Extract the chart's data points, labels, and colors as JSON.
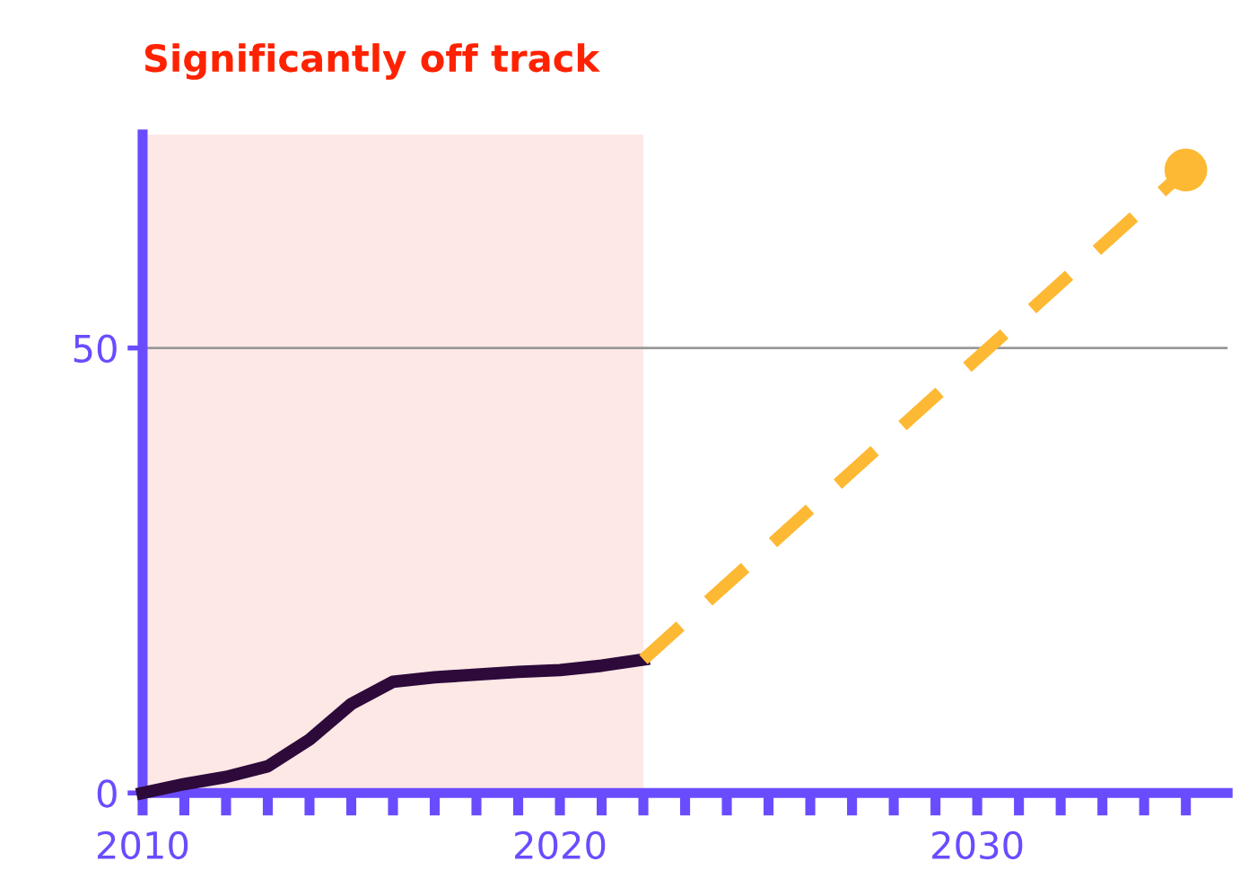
{
  "chart_data": {
    "type": "line",
    "title": "Significantly off track",
    "xlim": [
      2010,
      2036
    ],
    "ylim": [
      0,
      74
    ],
    "xticks": [
      2010,
      {
        "value": 2011,
        "label": null
      },
      {
        "value": 2012,
        "label": null
      },
      {
        "value": 2013,
        "label": null
      },
      {
        "value": 2014,
        "label": null
      },
      {
        "value": 2015,
        "label": null
      },
      {
        "value": 2016,
        "label": null
      },
      {
        "value": 2017,
        "label": null
      },
      {
        "value": 2018,
        "label": null
      },
      {
        "value": 2019,
        "label": null
      },
      2020,
      {
        "value": 2021,
        "label": null
      },
      {
        "value": 2022,
        "label": null
      },
      {
        "value": 2023,
        "label": null
      },
      {
        "value": 2024,
        "label": null
      },
      {
        "value": 2025,
        "label": null
      },
      {
        "value": 2026,
        "label": null
      },
      {
        "value": 2027,
        "label": null
      },
      {
        "value": 2028,
        "label": null
      },
      {
        "value": 2029,
        "label": null
      },
      2030,
      {
        "value": 2031,
        "label": null
      },
      {
        "value": 2032,
        "label": null
      },
      {
        "value": 2033,
        "label": null
      },
      {
        "value": 2034,
        "label": null
      },
      {
        "value": 2035,
        "label": null
      }
    ],
    "yticks": [
      0,
      50
    ],
    "grid": false,
    "legend": false,
    "series": [
      {
        "color": "#2d0a3a",
        "line_style": "solid",
        "x": [
          2010,
          2011,
          2012,
          2013,
          2014,
          2015,
          2016,
          2017,
          2018,
          2019,
          2020,
          2021,
          2022
        ],
        "values": [
          0,
          1,
          1.8,
          3,
          6,
          10,
          12.5,
          13,
          13.3,
          13.6,
          13.8,
          14.3,
          15
        ]
      },
      {
        "color": "#fdb933",
        "line_style": "dashed",
        "x": [
          2022,
          2035
        ],
        "values": [
          15,
          70
        ]
      },
      {
        "type": "scatter",
        "color": "#fdb933",
        "marker": "circle",
        "x": [
          2035
        ],
        "values": [
          70
        ]
      }
    ],
    "bands": [
      {
        "axis": "x",
        "from": 2010,
        "to": 2022,
        "color": "#fde8e6"
      }
    ],
    "ref_lines": [
      {
        "axis": "y",
        "value": 50,
        "color": "#999999",
        "line_style": "solid"
      }
    ]
  }
}
